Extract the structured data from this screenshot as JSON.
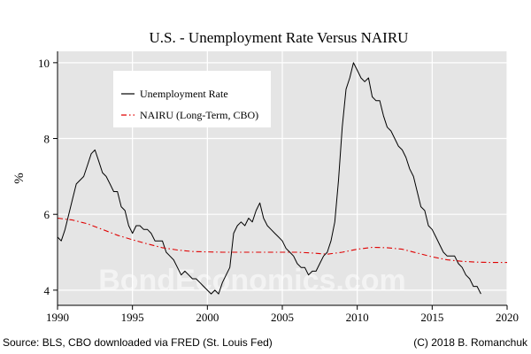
{
  "footer": {
    "source": "Source: BLS, CBO downloaded via FRED (St. Louis Fed)",
    "copyright": "(C) 2018 B. Romanchuk"
  },
  "watermark": "BondEconomics.com",
  "chart_data": {
    "type": "line",
    "title": "U.S. - Unemployment Rate Versus NAIRU",
    "xlabel": "",
    "ylabel": "%",
    "xlim": [
      1990,
      2020
    ],
    "ylim": [
      3.6,
      10.3
    ],
    "xticks": [
      1990,
      1995,
      2000,
      2005,
      2010,
      2015,
      2020
    ],
    "yticks": [
      4,
      6,
      8,
      10
    ],
    "grid": true,
    "legend_position": "top-left (inside plot)",
    "background": "#e5e5e5",
    "series": [
      {
        "name": "Unemployment Rate",
        "color": "#000000",
        "style": "solid",
        "x": [
          1990.0,
          1990.25,
          1990.5,
          1990.75,
          1991.0,
          1991.25,
          1991.5,
          1991.75,
          1992.0,
          1992.25,
          1992.5,
          1992.75,
          1993.0,
          1993.25,
          1993.5,
          1993.75,
          1994.0,
          1994.25,
          1994.5,
          1994.75,
          1995.0,
          1995.25,
          1995.5,
          1995.75,
          1996.0,
          1996.25,
          1996.5,
          1996.75,
          1997.0,
          1997.25,
          1997.5,
          1997.75,
          1998.0,
          1998.25,
          1998.5,
          1998.75,
          1999.0,
          1999.25,
          1999.5,
          1999.75,
          2000.0,
          2000.25,
          2000.5,
          2000.75,
          2001.0,
          2001.25,
          2001.5,
          2001.75,
          2002.0,
          2002.25,
          2002.5,
          2002.75,
          2003.0,
          2003.25,
          2003.5,
          2003.75,
          2004.0,
          2004.25,
          2004.5,
          2004.75,
          2005.0,
          2005.25,
          2005.5,
          2005.75,
          2006.0,
          2006.25,
          2006.5,
          2006.75,
          2007.0,
          2007.25,
          2007.5,
          2007.75,
          2008.0,
          2008.25,
          2008.5,
          2008.75,
          2009.0,
          2009.25,
          2009.5,
          2009.75,
          2010.0,
          2010.25,
          2010.5,
          2010.75,
          2011.0,
          2011.25,
          2011.5,
          2011.75,
          2012.0,
          2012.25,
          2012.5,
          2012.75,
          2013.0,
          2013.25,
          2013.5,
          2013.75,
          2014.0,
          2014.25,
          2014.5,
          2014.75,
          2015.0,
          2015.25,
          2015.5,
          2015.75,
          2016.0,
          2016.25,
          2016.5,
          2016.75,
          2017.0,
          2017.25,
          2017.5,
          2017.75,
          2018.0,
          2018.25
        ],
        "y": [
          5.4,
          5.3,
          5.6,
          6.0,
          6.4,
          6.8,
          6.9,
          7.0,
          7.3,
          7.6,
          7.7,
          7.4,
          7.1,
          7.0,
          6.8,
          6.6,
          6.6,
          6.2,
          6.1,
          5.7,
          5.5,
          5.7,
          5.7,
          5.6,
          5.6,
          5.5,
          5.3,
          5.3,
          5.3,
          5.0,
          4.9,
          4.8,
          4.6,
          4.4,
          4.5,
          4.4,
          4.3,
          4.3,
          4.2,
          4.1,
          4.0,
          3.9,
          4.0,
          3.9,
          4.2,
          4.4,
          4.6,
          5.5,
          5.7,
          5.8,
          5.7,
          5.9,
          5.8,
          6.1,
          6.3,
          5.9,
          5.7,
          5.6,
          5.5,
          5.4,
          5.3,
          5.1,
          5.0,
          4.9,
          4.7,
          4.6,
          4.6,
          4.4,
          4.5,
          4.5,
          4.7,
          4.9,
          5.0,
          5.3,
          5.8,
          6.9,
          8.3,
          9.3,
          9.6,
          10.0,
          9.8,
          9.6,
          9.5,
          9.6,
          9.1,
          9.0,
          9.0,
          8.6,
          8.3,
          8.2,
          8.0,
          7.8,
          7.7,
          7.5,
          7.2,
          7.0,
          6.6,
          6.2,
          6.1,
          5.7,
          5.6,
          5.4,
          5.2,
          5.0,
          4.9,
          4.9,
          4.9,
          4.7,
          4.6,
          4.4,
          4.3,
          4.1,
          4.1,
          3.9
        ]
      },
      {
        "name": "NAIRU (Long-Term, CBO)",
        "color": "#e00000",
        "style": "dash-dot",
        "x": [
          1990,
          1991,
          1992,
          1993,
          1994,
          1995,
          1996,
          1997,
          1998,
          1999,
          2000,
          2001,
          2002,
          2003,
          2004,
          2005,
          2006,
          2007,
          2008,
          2009,
          2010,
          2011,
          2012,
          2013,
          2014,
          2015,
          2016,
          2017,
          2018,
          2019,
          2020
        ],
        "y": [
          5.9,
          5.85,
          5.75,
          5.6,
          5.45,
          5.33,
          5.22,
          5.12,
          5.06,
          5.02,
          5.01,
          5.0,
          5.0,
          5.0,
          5.0,
          5.0,
          5.0,
          4.98,
          4.95,
          5.0,
          5.08,
          5.13,
          5.12,
          5.08,
          4.98,
          4.88,
          4.8,
          4.76,
          4.74,
          4.73,
          4.73
        ]
      }
    ]
  }
}
